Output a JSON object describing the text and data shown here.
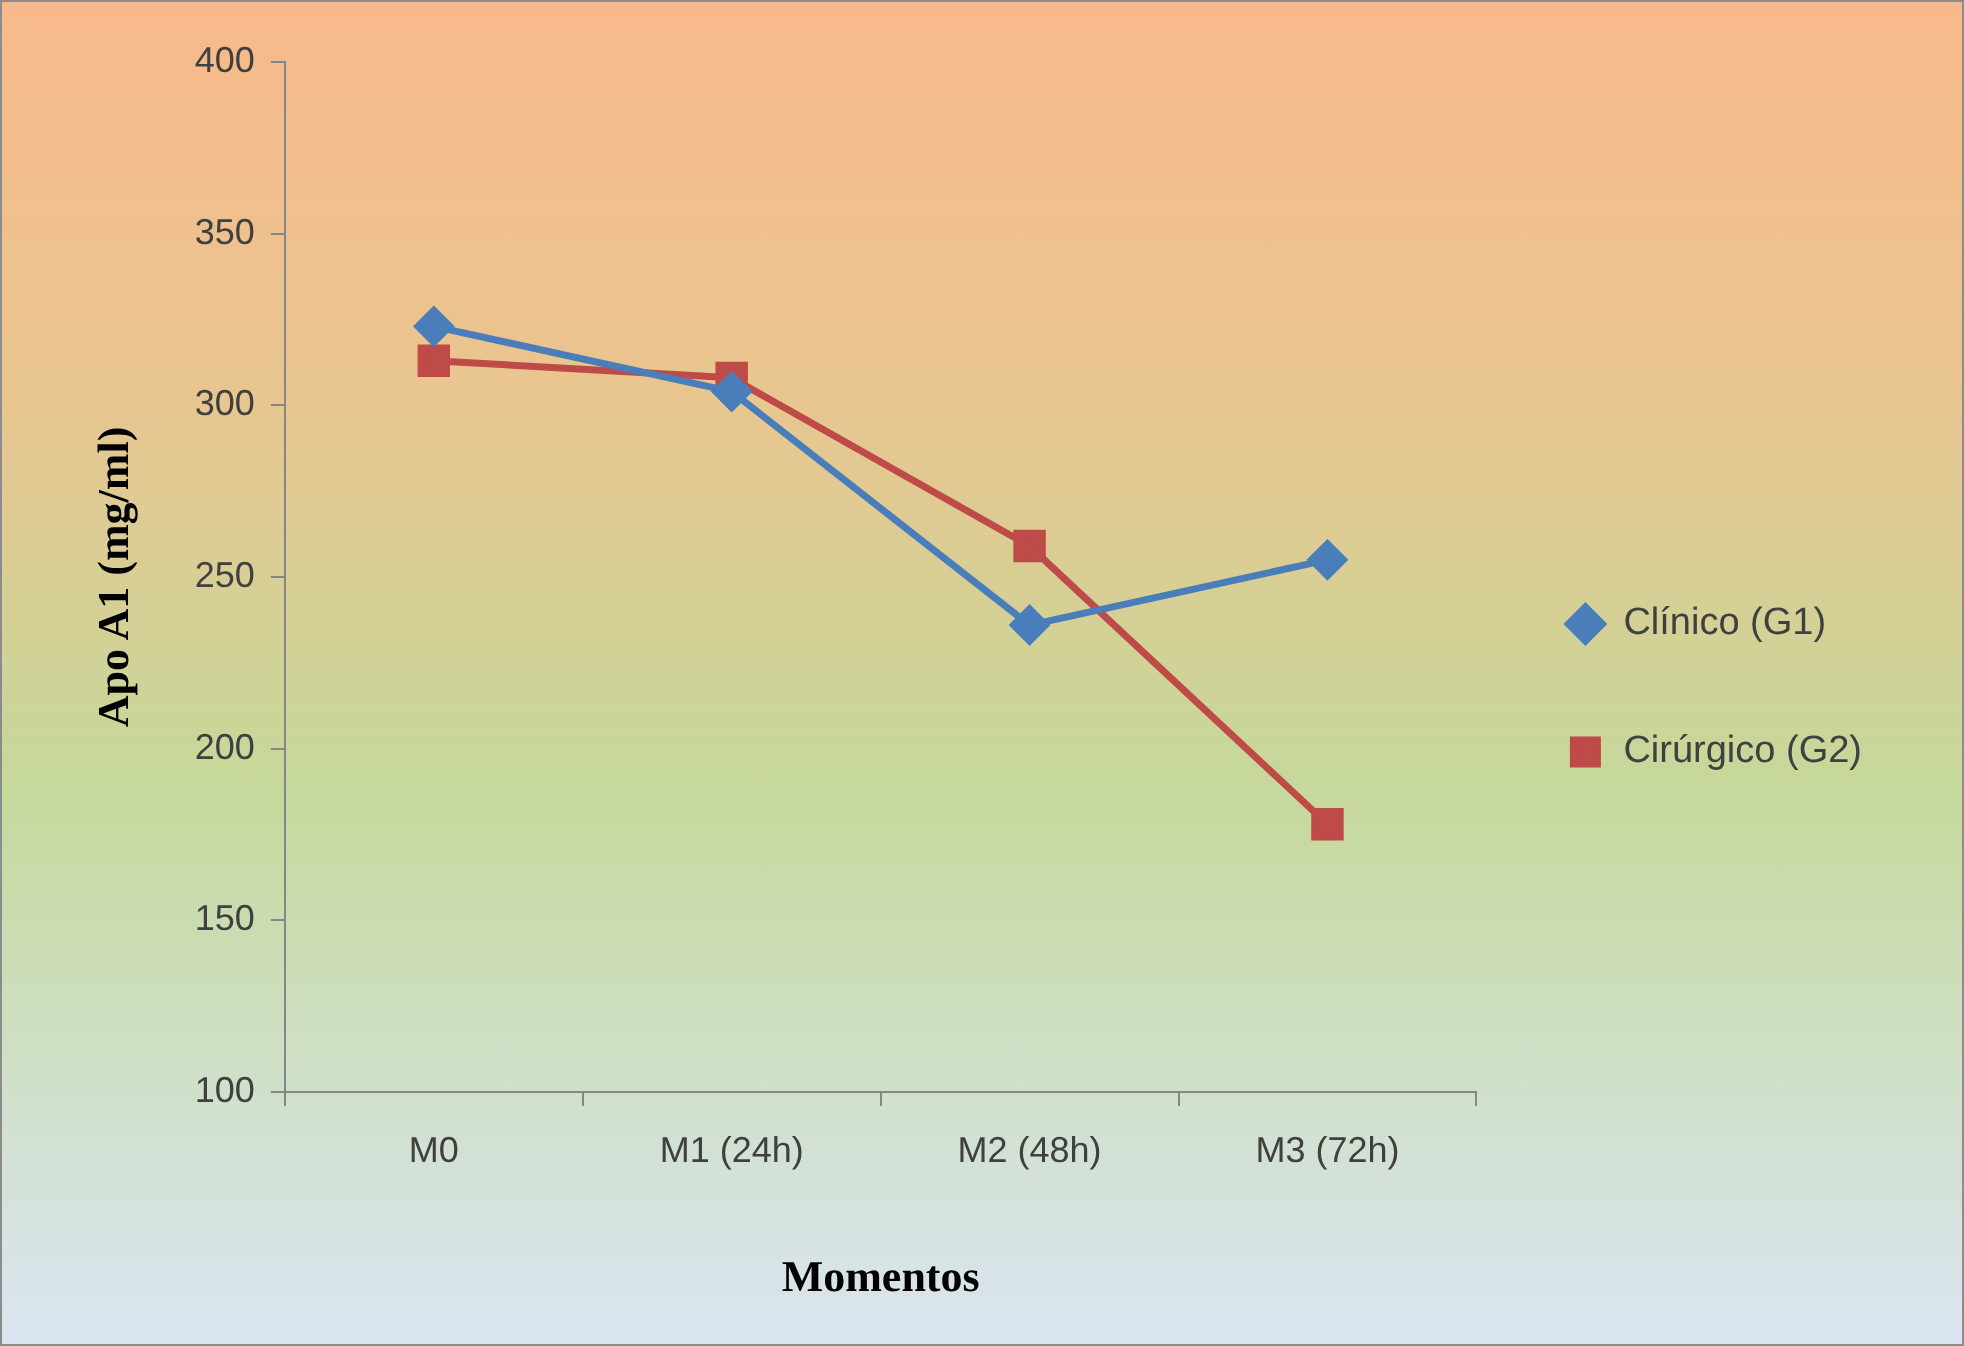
{
  "chart_data": {
    "type": "line",
    "xlabel": "Momentos",
    "ylabel": "Apo A1 (mg/ml)",
    "categories": [
      "M0",
      "M1 (24h)",
      "M2 (48h)",
      "M3 (72h)"
    ],
    "series": [
      {
        "name": "Clínico (G1)",
        "color": "#4a7ebb",
        "marker": "diamond",
        "values": [
          323,
          304,
          236,
          255
        ]
      },
      {
        "name": "Cirúrgico (G2)",
        "color": "#be4b48",
        "marker": "square",
        "values": [
          313,
          308,
          259,
          178
        ]
      }
    ],
    "ylim": [
      100,
      400
    ],
    "yticks": [
      100,
      150,
      200,
      250,
      300,
      350,
      400
    ],
    "grid": false,
    "legend": "right",
    "line_style": "solid"
  }
}
